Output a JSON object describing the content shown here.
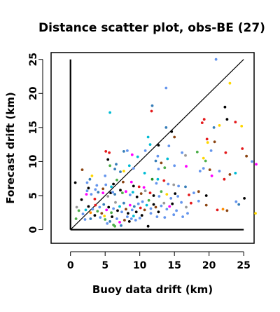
{
  "chart_data": {
    "type": "scatter",
    "title": "Distance scatter plot, obs-BE (27)",
    "xlabel": "Buoy data drift (km)",
    "ylabel": "Forecast drift (km)",
    "xlim": [
      -2.8,
      26.5
    ],
    "ylim": [
      -2.0,
      26.0
    ],
    "xticks": [
      "0",
      "5",
      "10",
      "15",
      "20",
      "25"
    ],
    "yticks": [
      "0",
      "5",
      "10",
      "15",
      "20",
      "25"
    ],
    "grid": false,
    "legend": "none",
    "reference_lines": [
      {
        "name": "",
        "x": [
          0,
          0
        ],
        "y": [
          0,
          25
        ]
      },
      {
        "name": "",
        "x": [
          0,
          25
        ],
        "y": [
          0,
          0
        ]
      },
      {
        "name": "",
        "x": [
          0,
          25
        ],
        "y": [
          0,
          25
        ]
      }
    ],
    "colors": [
      "#000000",
      "#e41a1c",
      "#4daf4a",
      "#377eb8",
      "#00bcd4",
      "#ff00ff",
      "#ffd700",
      "#999999",
      "#8b4513",
      "#6495ed",
      "#228b22",
      "#ff8c00"
    ],
    "points": [
      [
        5.7,
        17.2,
        4
      ],
      [
        11.7,
        17.4,
        1
      ],
      [
        11.8,
        18.2,
        3
      ],
      [
        13.8,
        20.8,
        9
      ],
      [
        21.0,
        25.0,
        9
      ],
      [
        23.0,
        21.5,
        6
      ],
      [
        22.3,
        18.0,
        0
      ],
      [
        24.7,
        15.2,
        6
      ],
      [
        23.8,
        15.8,
        1
      ],
      [
        22.6,
        16.2,
        0
      ],
      [
        19.3,
        16.2,
        1
      ],
      [
        19.0,
        15.7,
        1
      ],
      [
        21.5,
        15.3,
        6
      ],
      [
        20.7,
        15.0,
        3
      ],
      [
        13.8,
        15.0,
        3
      ],
      [
        14.6,
        14.4,
        0
      ],
      [
        15.0,
        13.6,
        8
      ],
      [
        11.2,
        13.6,
        4
      ],
      [
        11.5,
        12.5,
        4
      ],
      [
        14.2,
        12.3,
        9
      ],
      [
        12.7,
        12.4,
        0
      ],
      [
        19.8,
        12.8,
        6
      ],
      [
        19.7,
        13.3,
        1
      ],
      [
        20.8,
        12.9,
        8
      ],
      [
        24.8,
        11.9,
        1
      ],
      [
        25.4,
        10.8,
        8
      ],
      [
        22.4,
        11.3,
        1
      ],
      [
        20.3,
        11.6,
        9
      ],
      [
        18.3,
        11.4,
        2
      ],
      [
        19.2,
        10.5,
        6
      ],
      [
        19.5,
        10.1,
        2
      ],
      [
        5.1,
        11.5,
        1
      ],
      [
        5.6,
        11.3,
        1
      ],
      [
        5.4,
        10.3,
        0
      ],
      [
        7.7,
        11.5,
        3
      ],
      [
        8.2,
        11.6,
        9
      ],
      [
        10.8,
        11.6,
        9
      ],
      [
        8.9,
        11.0,
        5
      ],
      [
        9.7,
        10.7,
        4
      ],
      [
        12.6,
        10.8,
        9
      ],
      [
        12.3,
        10.1,
        3
      ],
      [
        16.1,
        11.3,
        9
      ],
      [
        16.6,
        10.9,
        7
      ],
      [
        14.0,
        10.4,
        4
      ],
      [
        13.1,
        9.8,
        8
      ],
      [
        15.0,
        9.4,
        9
      ],
      [
        16.7,
        9.3,
        5
      ],
      [
        13.6,
        9.1,
        2
      ],
      [
        12.7,
        8.9,
        9
      ],
      [
        10.7,
        8.3,
        4
      ],
      [
        9.1,
        9.0,
        9
      ],
      [
        8.5,
        9.4,
        4
      ],
      [
        6.6,
        9.6,
        3
      ],
      [
        6.4,
        8.9,
        3
      ],
      [
        5.7,
        9.4,
        2
      ],
      [
        7.2,
        8.5,
        3
      ],
      [
        7.7,
        8.6,
        6
      ],
      [
        1.7,
        8.8,
        8
      ],
      [
        0.7,
        6.9,
        0
      ],
      [
        2.4,
        6.9,
        9
      ],
      [
        2.8,
        7.4,
        3
      ],
      [
        3.1,
        7.9,
        6
      ],
      [
        5.0,
        7.9,
        9
      ],
      [
        3.8,
        6.5,
        9
      ],
      [
        3.6,
        5.9,
        9
      ],
      [
        4.7,
        6.0,
        8
      ],
      [
        5.1,
        6.6,
        9
      ],
      [
        5.9,
        6.3,
        4
      ],
      [
        6.2,
        6.7,
        0
      ],
      [
        6.7,
        7.3,
        2
      ],
      [
        7.6,
        7.0,
        8
      ],
      [
        8.8,
        7.0,
        5
      ],
      [
        9.1,
        6.4,
        0
      ],
      [
        9.9,
        6.3,
        1
      ],
      [
        10.6,
        6.2,
        5
      ],
      [
        11.8,
        7.4,
        10
      ],
      [
        12.4,
        6.8,
        9
      ],
      [
        12.6,
        7.4,
        4
      ],
      [
        13.5,
        7.2,
        1
      ],
      [
        14.1,
        6.7,
        9
      ],
      [
        14.9,
        6.6,
        7
      ],
      [
        16.6,
        6.3,
        3
      ],
      [
        15.6,
        6.4,
        9
      ],
      [
        18.7,
        8.6,
        9
      ],
      [
        19.2,
        9.0,
        9
      ],
      [
        20.1,
        8.8,
        8
      ],
      [
        20.4,
        7.9,
        5
      ],
      [
        21.5,
        8.6,
        9
      ],
      [
        22.2,
        7.4,
        1
      ],
      [
        23.0,
        8.1,
        8
      ],
      [
        23.8,
        8.3,
        4
      ],
      [
        26.2,
        10.0,
        9
      ],
      [
        26.8,
        9.6,
        5
      ],
      [
        1.6,
        4.4,
        0
      ],
      [
        2.3,
        5.2,
        5
      ],
      [
        2.4,
        5.7,
        9
      ],
      [
        2.6,
        6.1,
        0
      ],
      [
        3.0,
        5.2,
        9
      ],
      [
        3.5,
        4.5,
        1
      ],
      [
        4.0,
        5.5,
        3
      ],
      [
        4.7,
        5.4,
        5
      ],
      [
        5.4,
        4.9,
        7
      ],
      [
        5.8,
        5.4,
        0
      ],
      [
        6.1,
        5.5,
        9
      ],
      [
        6.4,
        5.2,
        3
      ],
      [
        7.2,
        5.8,
        0
      ],
      [
        7.5,
        5.4,
        2
      ],
      [
        8.0,
        5.6,
        5
      ],
      [
        8.6,
        5.1,
        9
      ],
      [
        9.0,
        5.5,
        4
      ],
      [
        9.6,
        4.8,
        0
      ],
      [
        10.2,
        5.3,
        8
      ],
      [
        10.8,
        5.7,
        7
      ],
      [
        11.5,
        5.4,
        1
      ],
      [
        12.0,
        5.0,
        0
      ],
      [
        12.8,
        4.9,
        9
      ],
      [
        13.1,
        5.6,
        2
      ],
      [
        13.9,
        5.2,
        6
      ],
      [
        14.5,
        4.6,
        9
      ],
      [
        15.1,
        5.3,
        0
      ],
      [
        15.5,
        4.9,
        9
      ],
      [
        17.1,
        5.1,
        1
      ],
      [
        17.8,
        5.4,
        9
      ],
      [
        18.5,
        5.6,
        8
      ],
      [
        19.6,
        5.0,
        0
      ],
      [
        1.2,
        2.8,
        2
      ],
      [
        1.8,
        2.3,
        9
      ],
      [
        2.2,
        2.9,
        4
      ],
      [
        2.6,
        3.4,
        0
      ],
      [
        2.9,
        2.5,
        11
      ],
      [
        3.2,
        3.0,
        9
      ],
      [
        3.6,
        3.6,
        1
      ],
      [
        3.9,
        2.7,
        2
      ],
      [
        4.2,
        3.3,
        9
      ],
      [
        4.5,
        2.4,
        8
      ],
      [
        4.8,
        3.7,
        3
      ],
      [
        5.2,
        2.9,
        5
      ],
      [
        5.5,
        3.3,
        0
      ],
      [
        5.9,
        2.5,
        2
      ],
      [
        6.2,
        3.1,
        9
      ],
      [
        6.5,
        4.0,
        7
      ],
      [
        6.8,
        2.8,
        0
      ],
      [
        7.1,
        3.4,
        4
      ],
      [
        7.4,
        2.6,
        9
      ],
      [
        7.7,
        3.9,
        3
      ],
      [
        8.0,
        3.0,
        8
      ],
      [
        8.3,
        2.4,
        0
      ],
      [
        8.6,
        3.6,
        5
      ],
      [
        8.9,
        2.9,
        9
      ],
      [
        9.2,
        3.4,
        3
      ],
      [
        9.5,
        2.6,
        0
      ],
      [
        9.8,
        3.8,
        9
      ],
      [
        10.1,
        3.2,
        1
      ],
      [
        10.4,
        4.1,
        9
      ],
      [
        10.7,
        2.9,
        8
      ],
      [
        11.0,
        3.6,
        4
      ],
      [
        11.3,
        4.3,
        2
      ],
      [
        11.6,
        3.1,
        9
      ],
      [
        12.0,
        3.7,
        0
      ],
      [
        12.3,
        3.3,
        8
      ],
      [
        12.7,
        2.6,
        0
      ],
      [
        13.1,
        3.5,
        9
      ],
      [
        13.5,
        3.9,
        7
      ],
      [
        13.9,
        3.0,
        9
      ],
      [
        14.3,
        3.4,
        5
      ],
      [
        14.7,
        3.8,
        0
      ],
      [
        15.3,
        2.8,
        9
      ],
      [
        16.0,
        4.0,
        9
      ],
      [
        16.7,
        3.3,
        7
      ],
      [
        17.4,
        3.9,
        1
      ],
      [
        18.5,
        4.2,
        9
      ],
      [
        19.6,
        3.6,
        8
      ],
      [
        21.2,
        2.9,
        1
      ],
      [
        22.0,
        3.0,
        11
      ],
      [
        22.6,
        2.8,
        8
      ],
      [
        23.9,
        4.1,
        9
      ],
      [
        24.3,
        3.7,
        3
      ],
      [
        25.1,
        4.6,
        0
      ],
      [
        26.7,
        2.4,
        6
      ],
      [
        0.9,
        3.3,
        7
      ],
      [
        0.8,
        1.6,
        2
      ],
      [
        2.1,
        1.5,
        9
      ],
      [
        2.9,
        1.6,
        3
      ],
      [
        3.5,
        2.1,
        0
      ],
      [
        4.3,
        1.8,
        9
      ],
      [
        5.0,
        1.5,
        2
      ],
      [
        5.3,
        0.9,
        9
      ],
      [
        5.7,
        1.2,
        3
      ],
      [
        6.2,
        0.7,
        2
      ],
      [
        6.0,
        1.9,
        0
      ],
      [
        6.7,
        1.6,
        9
      ],
      [
        7.1,
        1.1,
        5
      ],
      [
        7.3,
        0.6,
        3
      ],
      [
        7.8,
        1.4,
        8
      ],
      [
        8.2,
        1.9,
        9
      ],
      [
        8.5,
        1.2,
        0
      ],
      [
        8.8,
        1.6,
        9
      ],
      [
        9.1,
        2.0,
        4
      ],
      [
        9.4,
        1.4,
        9
      ],
      [
        10.0,
        1.7,
        9
      ],
      [
        10.3,
        2.1,
        0
      ],
      [
        11.2,
        0.5,
        0
      ],
      [
        11.6,
        2.4,
        9
      ],
      [
        12.5,
        1.9,
        9
      ],
      [
        13.6,
        1.8,
        9
      ],
      [
        14.9,
        2.2,
        9
      ],
      [
        16.2,
        1.9,
        9
      ],
      [
        16.9,
        2.4,
        9
      ],
      [
        6.4,
        0.5,
        2
      ],
      [
        4.9,
        2.0,
        6
      ]
    ]
  }
}
